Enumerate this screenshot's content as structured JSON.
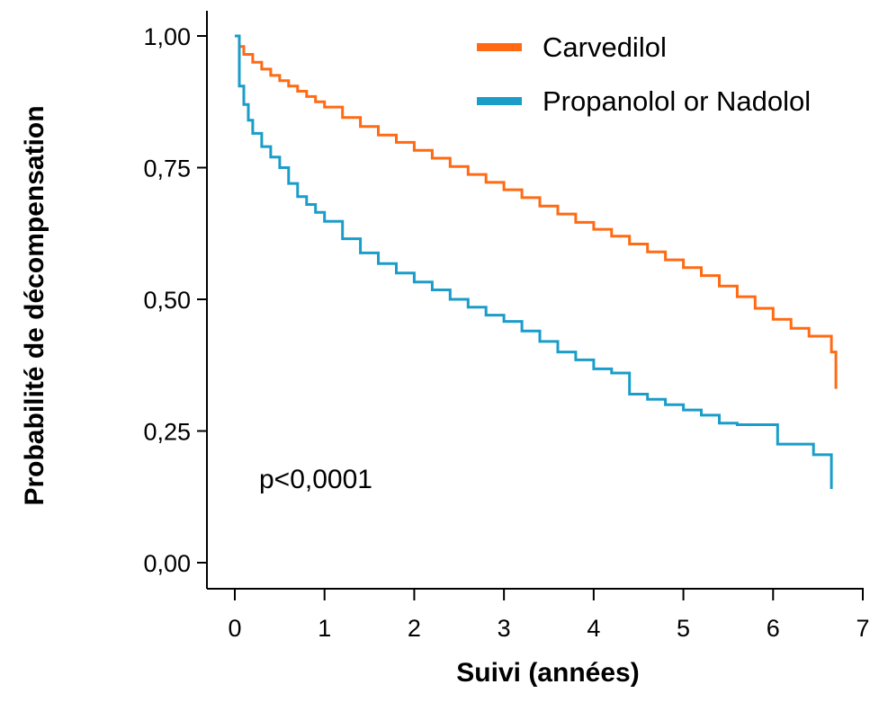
{
  "chart_data": {
    "type": "line",
    "title": "",
    "xlabel": "Suivi (années)",
    "ylabel": "Probabilité de décompensation",
    "xlim": [
      0,
      7
    ],
    "ylim": [
      0,
      1
    ],
    "x_ticks": [
      0,
      1,
      2,
      3,
      4,
      5,
      6,
      7
    ],
    "x_tick_labels": [
      "0",
      "1",
      "2",
      "3",
      "4",
      "5",
      "6",
      "7"
    ],
    "y_ticks": [
      0,
      0.25,
      0.5,
      0.75,
      1
    ],
    "y_tick_labels": [
      "0,00",
      "0,25",
      "0,50",
      "0,75",
      "1,00"
    ],
    "grid": false,
    "legend_position": "top-right",
    "annotation": "p<0,0001",
    "series": [
      {
        "name": "Carvedilol",
        "color": "#ff6a13",
        "x": [
          0,
          0.05,
          0.1,
          0.2,
          0.3,
          0.4,
          0.5,
          0.6,
          0.7,
          0.8,
          0.9,
          1.0,
          1.2,
          1.4,
          1.6,
          1.8,
          2.0,
          2.2,
          2.4,
          2.6,
          2.8,
          3.0,
          3.2,
          3.4,
          3.6,
          3.8,
          4.0,
          4.2,
          4.4,
          4.6,
          4.8,
          5.0,
          5.2,
          5.4,
          5.6,
          5.8,
          6.0,
          6.2,
          6.4,
          6.6,
          6.65,
          6.7
        ],
        "y": [
          1.0,
          0.98,
          0.965,
          0.95,
          0.937,
          0.925,
          0.915,
          0.905,
          0.895,
          0.885,
          0.875,
          0.865,
          0.845,
          0.828,
          0.812,
          0.798,
          0.783,
          0.768,
          0.752,
          0.737,
          0.722,
          0.708,
          0.693,
          0.677,
          0.662,
          0.646,
          0.633,
          0.62,
          0.605,
          0.59,
          0.575,
          0.56,
          0.545,
          0.525,
          0.505,
          0.483,
          0.462,
          0.445,
          0.43,
          0.43,
          0.4,
          0.33
        ]
      },
      {
        "name": "Propanolol or Nadolol",
        "color": "#1a9dc9",
        "x": [
          0,
          0.05,
          0.1,
          0.15,
          0.2,
          0.3,
          0.4,
          0.5,
          0.6,
          0.7,
          0.8,
          0.9,
          1.0,
          1.2,
          1.4,
          1.6,
          1.8,
          2.0,
          2.2,
          2.4,
          2.6,
          2.8,
          3.0,
          3.2,
          3.4,
          3.6,
          3.8,
          4.0,
          4.2,
          4.4,
          4.6,
          4.8,
          5.0,
          5.2,
          5.4,
          5.6,
          5.8,
          6.0,
          6.05,
          6.4,
          6.45,
          6.65
        ],
        "y": [
          1.0,
          0.905,
          0.87,
          0.84,
          0.815,
          0.79,
          0.77,
          0.75,
          0.72,
          0.695,
          0.68,
          0.665,
          0.648,
          0.615,
          0.588,
          0.568,
          0.55,
          0.533,
          0.518,
          0.5,
          0.485,
          0.47,
          0.458,
          0.44,
          0.42,
          0.4,
          0.385,
          0.368,
          0.36,
          0.32,
          0.31,
          0.3,
          0.29,
          0.28,
          0.265,
          0.262,
          0.262,
          0.262,
          0.225,
          0.225,
          0.205,
          0.14
        ]
      }
    ]
  }
}
